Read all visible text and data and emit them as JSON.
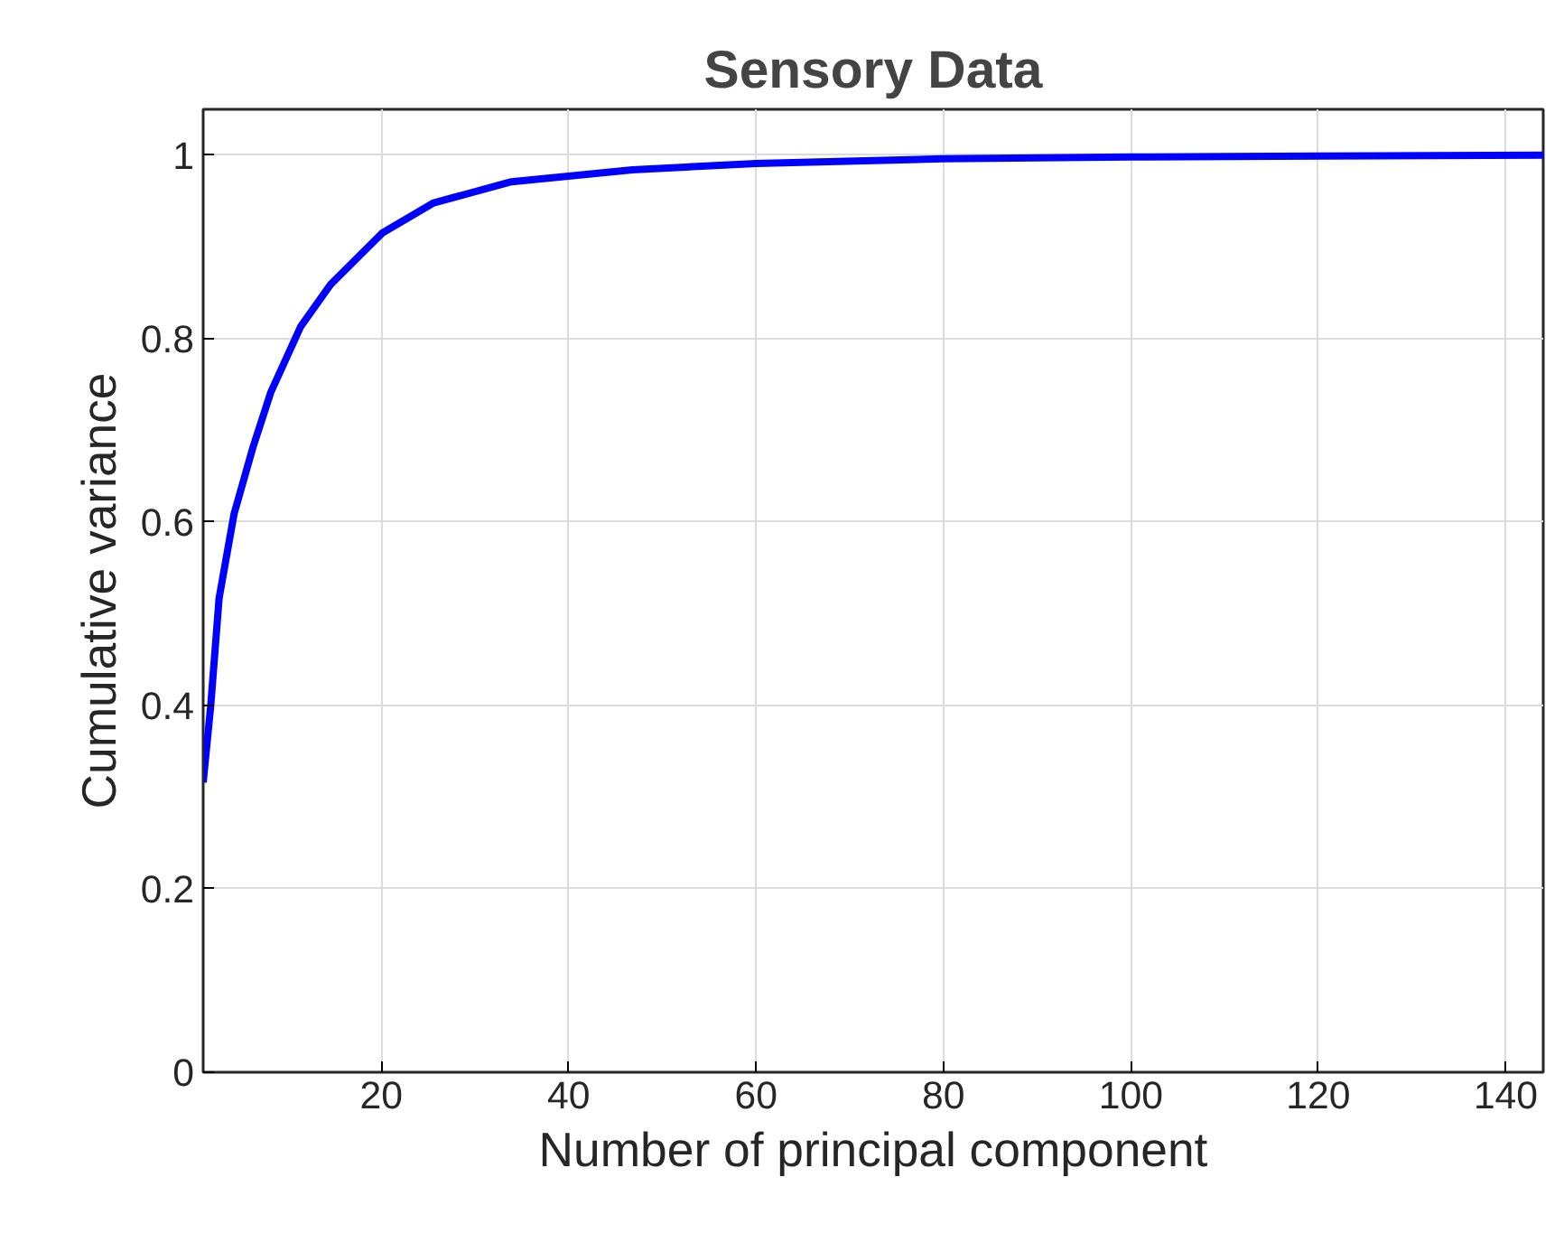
{
  "chart_data": {
    "type": "line",
    "title": "Sensory Data",
    "xlabel": "Number of principal component",
    "ylabel": "Cumulative variance",
    "series": [
      {
        "color": "#0000ff",
        "x": [
          1,
          1.8,
          2.7,
          4.3,
          6.3,
          8.2,
          11.4,
          14.6,
          20.1,
          25.6,
          33.9,
          46.8,
          60,
          80,
          100,
          120,
          144
        ],
        "values": [
          0.316,
          0.399,
          0.517,
          0.609,
          0.681,
          0.741,
          0.813,
          0.859,
          0.915,
          0.948,
          0.971,
          0.984,
          0.991,
          0.996,
          0.998,
          0.999,
          1.0
        ]
      }
    ],
    "xlim": [
      1,
      144
    ],
    "ylim": [
      0,
      1.05
    ],
    "xticks": [
      20,
      40,
      60,
      80,
      100,
      120,
      140
    ],
    "yticks": [
      0,
      0.2,
      0.4,
      0.6,
      0.8,
      1
    ],
    "grid": true,
    "line_style": "solid",
    "marker": "none"
  }
}
